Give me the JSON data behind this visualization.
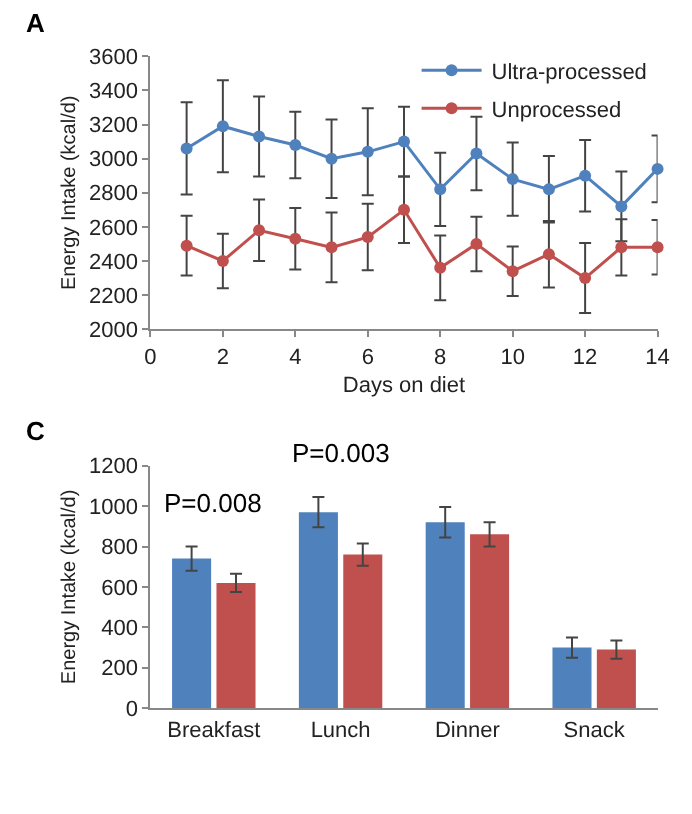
{
  "chart_data": [
    {
      "type": "line",
      "title": "A",
      "xlabel": "Days on diet",
      "ylabel": "Energy Intake (kcal/d)",
      "x": [
        1,
        2,
        3,
        4,
        5,
        6,
        7,
        8,
        9,
        10,
        11,
        12,
        13,
        14
      ],
      "xlim": [
        0,
        14
      ],
      "xticks": [
        0,
        2,
        4,
        6,
        8,
        10,
        12,
        14
      ],
      "ylim": [
        2000,
        3600
      ],
      "yticks": [
        2000,
        2200,
        2400,
        2600,
        2800,
        3000,
        3200,
        3400,
        3600
      ],
      "marker": "circle",
      "legend": "top right",
      "grid": false,
      "series": [
        {
          "name": "Ultra-processed",
          "color": "#4f81bd",
          "values": [
            3060,
            3190,
            3130,
            3080,
            3000,
            3040,
            3100,
            2820,
            3030,
            2880,
            2820,
            2900,
            2720,
            2940
          ],
          "errors": [
            270,
            270,
            235,
            195,
            230,
            255,
            205,
            215,
            215,
            215,
            195,
            210,
            205,
            195
          ]
        },
        {
          "name": "Unprocessed",
          "color": "#c0504d",
          "values": [
            2490,
            2400,
            2580,
            2530,
            2480,
            2540,
            2700,
            2360,
            2500,
            2340,
            2440,
            2300,
            2480,
            2480
          ],
          "errors": [
            175,
            160,
            180,
            180,
            205,
            195,
            195,
            190,
            160,
            145,
            195,
            205,
            165,
            160
          ]
        }
      ]
    },
    {
      "type": "bar",
      "title": "C",
      "ylabel": "Energy Intake (kcal/d)",
      "categories": [
        "Breakfast",
        "Lunch",
        "Dinner",
        "Snack"
      ],
      "ylim": [
        0,
        1200
      ],
      "yticks": [
        0,
        200,
        400,
        600,
        800,
        1000,
        1200
      ],
      "grid": false,
      "legend": false,
      "annotations": [
        "P=0.008",
        "P=0.003"
      ],
      "series": [
        {
          "color": "#4f81bd",
          "values": [
            740,
            970,
            920,
            300
          ],
          "errors": [
            60,
            75,
            75,
            50
          ]
        },
        {
          "color": "#c0504d",
          "values": [
            620,
            760,
            860,
            290
          ],
          "errors": [
            45,
            55,
            60,
            45
          ]
        }
      ]
    }
  ]
}
